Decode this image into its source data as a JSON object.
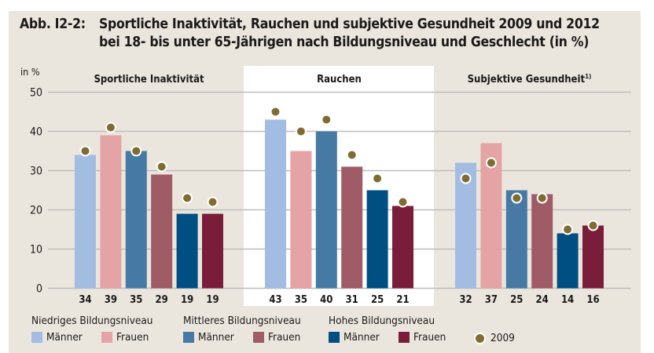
{
  "figure": {
    "number": "Abb. I2-2:",
    "title_line1": "Sportliche Inaktivität, Rauchen und subjektive Gesundheit 2009 und 2012",
    "title_line2": "bei 18- bis unter 65-Jährigen nach Bildungsniveau und Geschlecht (in %)"
  },
  "colors": {
    "panel_bg": "#ebe6dd",
    "highlight_bg": "#ffffff",
    "grid": "#bdbdbd",
    "dot": "#806b30",
    "niedrig_maenner": "#a3bde2",
    "niedrig_frauen": "#e4a3a5",
    "mittel_maenner": "#467aa5",
    "mittel_frauen": "#9f5c66",
    "hoch_maenner": "#004f82",
    "hoch_frauen": "#7a1d3a"
  },
  "chart_data": {
    "type": "bar",
    "title": "Sportliche Inaktivität, Rauchen und subjektive Gesundheit 2009 und 2012 bei 18- bis unter 65-Jährigen nach Bildungsniveau und Geschlecht (in %)",
    "ylabel": "in %",
    "ylim": [
      0,
      50
    ],
    "yticks": [
      0,
      10,
      20,
      30,
      40,
      50
    ],
    "grid": true,
    "categories": [
      "Niedriges Bildungsniveau – Männer",
      "Niedriges Bildungsniveau – Frauen",
      "Mittleres Bildungsniveau – Männer",
      "Mittleres Bildungsniveau – Frauen",
      "Hohes Bildungsniveau – Männer",
      "Hohes Bildungsniveau – Frauen"
    ],
    "series_keys": [
      "niedrig_maenner",
      "niedrig_frauen",
      "mittel_maenner",
      "mittel_frauen",
      "hoch_maenner",
      "hoch_frauen"
    ],
    "panels": [
      {
        "name": "Sportliche Inaktivität",
        "footnote": "",
        "highlight": false,
        "values_2012": [
          34,
          39,
          35,
          29,
          19,
          19
        ],
        "values_2009": [
          35,
          41,
          35,
          31,
          23,
          22
        ]
      },
      {
        "name": "Rauchen",
        "footnote": "",
        "highlight": true,
        "values_2012": [
          43,
          35,
          40,
          31,
          25,
          21
        ],
        "values_2009": [
          45,
          40,
          43,
          34,
          28,
          22
        ]
      },
      {
        "name": "Subjektive Gesundheit",
        "footnote": "1)",
        "highlight": false,
        "values_2012": [
          32,
          37,
          25,
          24,
          14,
          16
        ],
        "values_2009": [
          28,
          32,
          23,
          23,
          15,
          16
        ]
      }
    ],
    "bar_series_label": "2012",
    "dot_series_label": "2009",
    "legend_placement": "bottom"
  },
  "legend": {
    "groups": [
      {
        "title": "Niedriges Bildungsniveau",
        "items": [
          {
            "label": "Männer",
            "color_key": "niedrig_maenner"
          },
          {
            "label": "Frauen",
            "color_key": "niedrig_frauen"
          }
        ]
      },
      {
        "title": "Mittleres Bildungsniveau",
        "items": [
          {
            "label": "Männer",
            "color_key": "mittel_maenner"
          },
          {
            "label": "Frauen",
            "color_key": "mittel_frauen"
          }
        ]
      },
      {
        "title": "Hohes Bildungsniveau",
        "items": [
          {
            "label": "Männer",
            "color_key": "hoch_maenner"
          },
          {
            "label": "Frauen",
            "color_key": "hoch_frauen"
          }
        ]
      }
    ],
    "dot_label": "2009"
  }
}
